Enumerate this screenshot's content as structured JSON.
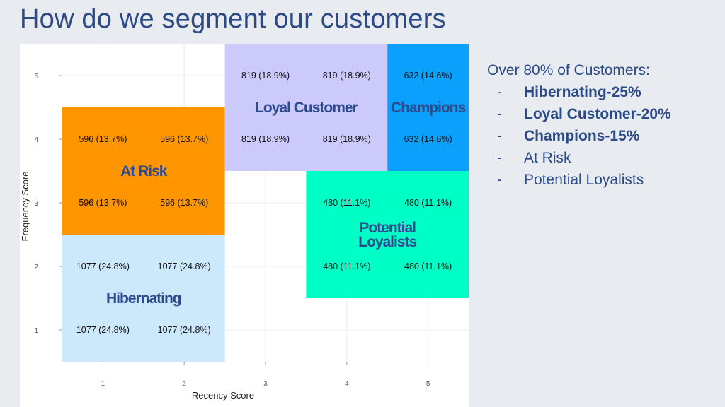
{
  "slide": {
    "title": "How do we segment our customers"
  },
  "summary": {
    "heading": "Over 80% of Customers:",
    "items": [
      {
        "text": "Hibernating-25%",
        "bold": true
      },
      {
        "text": "Loyal Customer-20%",
        "bold": true
      },
      {
        "text": "Champions-15%",
        "bold": true
      },
      {
        "text": "At Risk",
        "bold": false
      },
      {
        "text": "Potential Loyalists",
        "bold": false
      }
    ],
    "dash": "-"
  },
  "chart_data": {
    "type": "heatmap",
    "xlabel": "Recency Score",
    "ylabel": "Frequency Score",
    "x_ticks": [
      "1",
      "2",
      "3",
      "4",
      "5"
    ],
    "y_ticks": [
      "1",
      "2",
      "3",
      "4",
      "5"
    ],
    "xlim": [
      0.5,
      5.5
    ],
    "ylim": [
      0.5,
      5.5
    ],
    "segments": [
      {
        "name": "Hibernating",
        "label_lines": [
          "Hibernating"
        ],
        "color": "#cce8fb",
        "x_range": [
          0.5,
          2.5
        ],
        "y_range": [
          0.5,
          2.5
        ]
      },
      {
        "name": "At Risk",
        "label_lines": [
          "At Risk"
        ],
        "color": "#ff9500",
        "x_range": [
          0.5,
          2.5
        ],
        "y_range": [
          2.5,
          4.5
        ]
      },
      {
        "name": "Loyal Customer",
        "label_lines": [
          "Loyal Customer"
        ],
        "color": "#ccc9fb",
        "x_range": [
          2.5,
          4.5
        ],
        "y_range": [
          3.5,
          5.5
        ]
      },
      {
        "name": "Champions",
        "label_lines": [
          "Champions"
        ],
        "color": "#0aa0fb",
        "x_range": [
          4.5,
          5.5
        ],
        "y_range": [
          3.5,
          5.5
        ]
      },
      {
        "name": "Potential Loyalists",
        "label_lines": [
          "Potential",
          "Loyalists"
        ],
        "color": "#00ffc6",
        "x_range": [
          3.5,
          5.5
        ],
        "y_range": [
          1.5,
          3.5
        ]
      }
    ],
    "cells": [
      {
        "x": 1,
        "y": 1,
        "text": "1077 (24.8%)"
      },
      {
        "x": 2,
        "y": 1,
        "text": "1077 (24.8%)"
      },
      {
        "x": 1,
        "y": 2,
        "text": "1077 (24.8%)"
      },
      {
        "x": 2,
        "y": 2,
        "text": "1077 (24.8%)"
      },
      {
        "x": 1,
        "y": 3,
        "text": "596 (13.7%)"
      },
      {
        "x": 2,
        "y": 3,
        "text": "596 (13.7%)"
      },
      {
        "x": 1,
        "y": 4,
        "text": "596 (13.7%)"
      },
      {
        "x": 2,
        "y": 4,
        "text": "596 (13.7%)"
      },
      {
        "x": 3,
        "y": 4,
        "text": "819 (18.9%)"
      },
      {
        "x": 4,
        "y": 4,
        "text": "819 (18.9%)"
      },
      {
        "x": 3,
        "y": 5,
        "text": "819 (18.9%)"
      },
      {
        "x": 4,
        "y": 5,
        "text": "819 (18.9%)"
      },
      {
        "x": 5,
        "y": 4,
        "text": "632 (14.6%)"
      },
      {
        "x": 5,
        "y": 5,
        "text": "632 (14.6%)"
      },
      {
        "x": 4,
        "y": 2,
        "text": "480 (11.1%)"
      },
      {
        "x": 5,
        "y": 2,
        "text": "480 (11.1%)"
      },
      {
        "x": 4,
        "y": 3,
        "text": "480 (11.1%)"
      },
      {
        "x": 5,
        "y": 3,
        "text": "480 (11.1%)"
      }
    ],
    "grid": true,
    "legend": "none"
  }
}
